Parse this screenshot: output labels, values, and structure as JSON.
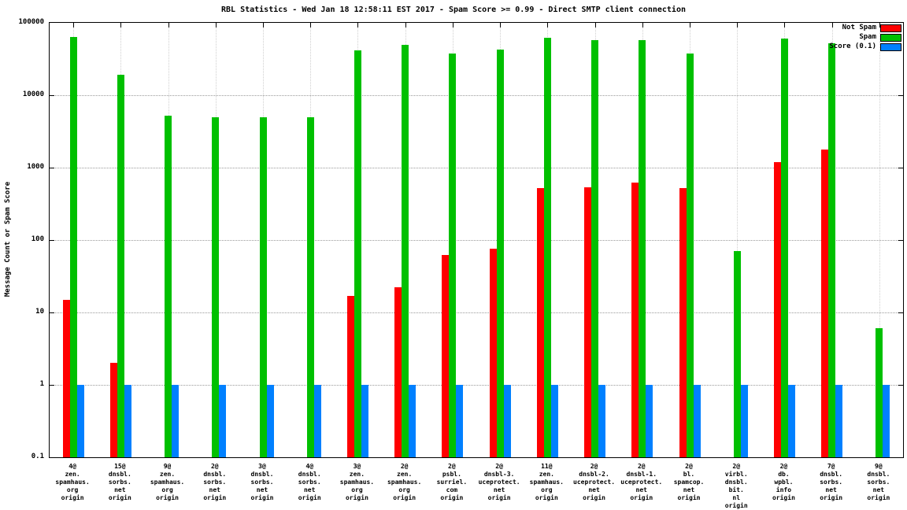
{
  "chart_data": {
    "type": "bar",
    "title": "RBL Statistics - Wed Jan 18 12:58:11 EST 2017 - Spam Score >= 0.99 - Direct SMTP client connection",
    "ylabel": "Message Count or Spam Score",
    "yscale": "log",
    "ylim": [
      0.1,
      100000
    ],
    "yticks": [
      "100000",
      "10000",
      "1000",
      "100",
      "10",
      "1",
      "0.1"
    ],
    "grid": true,
    "legend_position": "top-right",
    "categories": [
      [
        "4@",
        "zen.",
        "spamhaus.",
        "org",
        "origin"
      ],
      [
        "15@",
        "dnsbl.",
        "sorbs.",
        "net",
        "origin"
      ],
      [
        "9@",
        "zen.",
        "spamhaus.",
        "org",
        "origin"
      ],
      [
        "2@",
        "dnsbl.",
        "sorbs.",
        "net",
        "origin"
      ],
      [
        "3@",
        "dnsbl.",
        "sorbs.",
        "net",
        "origin"
      ],
      [
        "4@",
        "dnsbl.",
        "sorbs.",
        "net",
        "origin"
      ],
      [
        "3@",
        "zen.",
        "spamhaus.",
        "org",
        "origin"
      ],
      [
        "2@",
        "zen.",
        "spamhaus.",
        "org",
        "origin"
      ],
      [
        "2@",
        "psbl.",
        "surriel.",
        "com",
        "origin"
      ],
      [
        "2@",
        "dnsbl-3.",
        "uceprotect.",
        "net",
        "origin"
      ],
      [
        "11@",
        "zen.",
        "spamhaus.",
        "org",
        "origin"
      ],
      [
        "2@",
        "dnsbl-2.",
        "uceprotect.",
        "net",
        "origin"
      ],
      [
        "2@",
        "dnsbl-1.",
        "uceprotect.",
        "net",
        "origin"
      ],
      [
        "2@",
        "bl.",
        "spamcop.",
        "net",
        "origin"
      ],
      [
        "2@",
        "virbl.",
        "dnsbl.",
        "bit.",
        "nl",
        "origin"
      ],
      [
        "2@",
        "db.",
        "wpbl.",
        "info",
        "origin"
      ],
      [
        "7@",
        "dnsbl.",
        "sorbs.",
        "net",
        "origin"
      ],
      [
        "9@",
        "dnsbl.",
        "sorbs.",
        "net",
        "origin"
      ]
    ],
    "series": [
      {
        "name": "Not Spam",
        "color": "#ff0000",
        "values": [
          15,
          2,
          null,
          null,
          null,
          null,
          17,
          22,
          62,
          75,
          520,
          540,
          620,
          520,
          null,
          1200,
          1800,
          null
        ]
      },
      {
        "name": "Spam",
        "color": "#00c000",
        "values": [
          63000,
          19000,
          5200,
          5000,
          5000,
          5000,
          42000,
          50000,
          38000,
          43000,
          62000,
          57000,
          57000,
          38000,
          70,
          60000,
          52000,
          6
        ]
      },
      {
        "name": "Score (0.1)",
        "color": "#0080ff",
        "values": [
          1,
          1,
          1,
          1,
          1,
          1,
          1,
          1,
          1,
          1,
          1,
          1,
          1,
          1,
          1,
          1,
          1,
          1
        ]
      }
    ]
  }
}
